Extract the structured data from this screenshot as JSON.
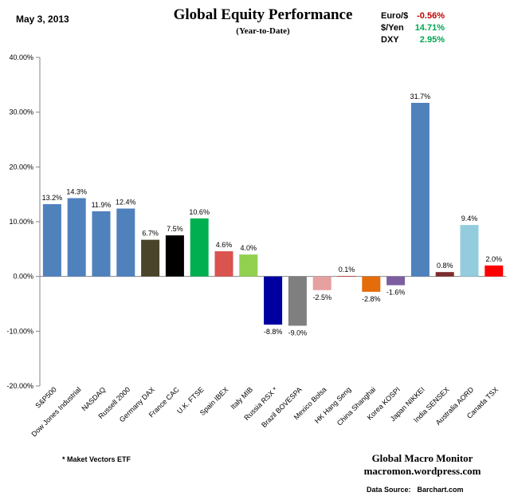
{
  "header": {
    "date": "May 3, 2013",
    "title": "Global Equity Performance",
    "subtitle": "(Year-to-Date)"
  },
  "fx": [
    {
      "label": "Euro/$",
      "value": "-0.56%",
      "color": "#c00000"
    },
    {
      "label": "$/Yen",
      "value": "14.71%",
      "color": "#00a651"
    },
    {
      "label": "DXY",
      "value": "2.95%",
      "color": "#00a651"
    }
  ],
  "footer": {
    "footnote": "* Maket Vectors ETF",
    "brand_line1": "Global Macro Monitor",
    "brand_line2": "macromon.wordpress.com",
    "source_label": "Data Source:",
    "source_value": "Barchart.com"
  },
  "chart_data": {
    "type": "bar",
    "title": "Global Equity Performance",
    "subtitle": "(Year-to-Date)",
    "ylim": [
      -20,
      40
    ],
    "yticks": [
      -20,
      -10,
      0,
      10,
      20,
      30,
      40
    ],
    "ytick_labels": [
      "-20.00%",
      "-10.00%",
      "0.00%",
      "10.00%",
      "20.00%",
      "30.00%",
      "40.00%"
    ],
    "grid": false,
    "categories": [
      "S&P500",
      "Dow Jones Industrial",
      "NASDAQ",
      "Russell 2000",
      "Germany DAX",
      "France CAC",
      "U.K. FTSE",
      "Spain IBEX",
      "Italy MIB",
      "Russia RSX *",
      "Brazil BOVESPA",
      "Mexico Bolsa",
      "HK Hang Seng",
      "China Shanghai",
      "Korea KOSPI",
      "Japan NIKKEI",
      "India SENSEX",
      "Australia AORD",
      "Canada TSX"
    ],
    "values": [
      13.2,
      14.3,
      11.9,
      12.4,
      6.7,
      7.5,
      10.6,
      4.6,
      4.0,
      -8.8,
      -9.0,
      -2.5,
      0.1,
      -2.8,
      -1.6,
      31.7,
      0.8,
      9.4,
      2.0
    ],
    "data_labels": [
      "13.2%",
      "14.3%",
      "11.9%",
      "12.4%",
      "6.7%",
      "7.5%",
      "10.6%",
      "4.6%",
      "4.0%",
      "-8.8%",
      "-9.0%",
      "-2.5%",
      "0.1%",
      "-2.8%",
      "-1.6%",
      "31.7%",
      "0.8%",
      "9.4%",
      "2.0%"
    ],
    "colors": [
      "#4f81bd",
      "#4f81bd",
      "#4f81bd",
      "#4f81bd",
      "#4a452a",
      "#000000",
      "#00b050",
      "#d9534f",
      "#92d050",
      "#0000a0",
      "#7f7f7f",
      "#e6a0a0",
      "#c0504d",
      "#e46c0a",
      "#7c5ea0",
      "#4f81bd",
      "#7b2c2c",
      "#93cddd",
      "#ff0000"
    ]
  }
}
